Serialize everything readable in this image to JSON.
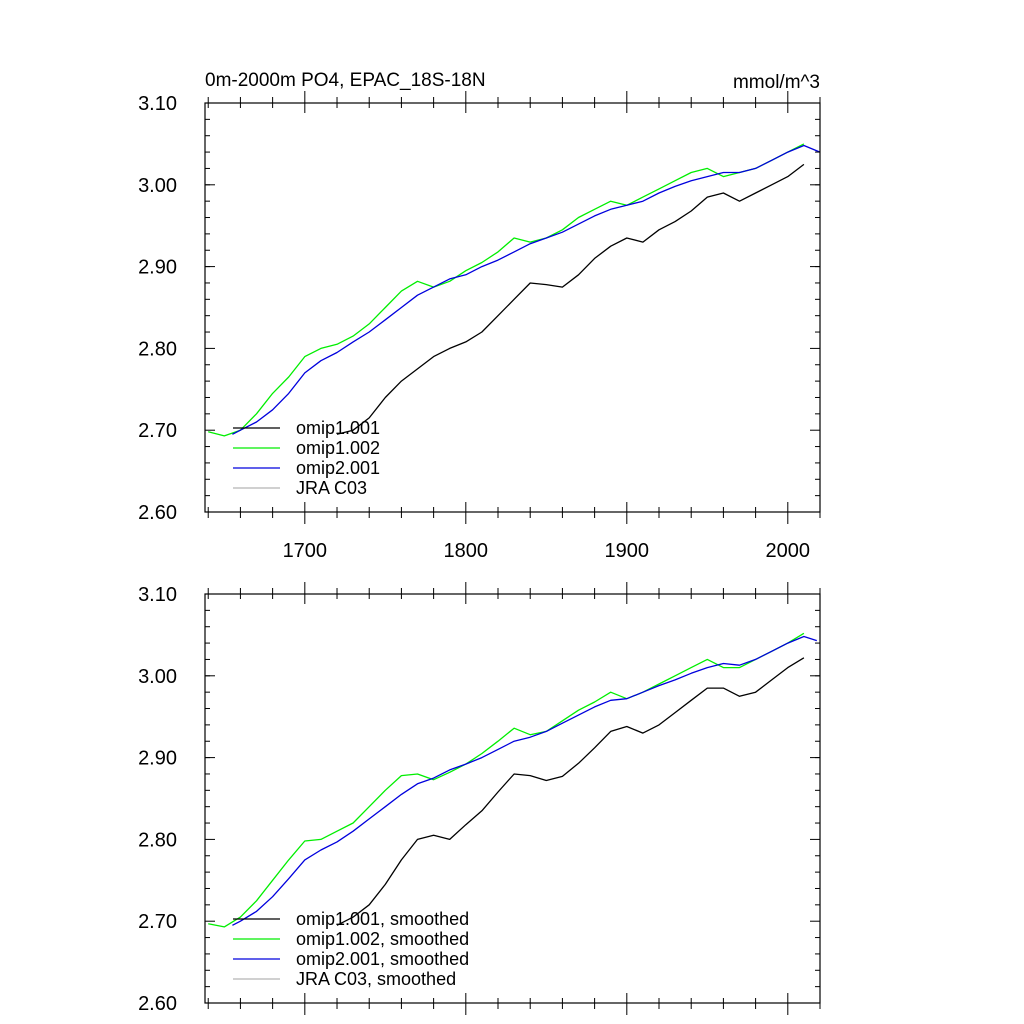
{
  "colors": {
    "omip1_001": "#000000",
    "omip1_002": "#00ee00",
    "omip2_001": "#0000dd",
    "jra_c03": "#b4b4b4"
  },
  "figure": {
    "title_left": "0m-2000m PO4, EPAC_18S-18N",
    "title_right": "mmol/m^3"
  },
  "chart_data": [
    {
      "type": "line",
      "panel": "raw",
      "xlim": [
        1638,
        2020
      ],
      "ylim": [
        2.6,
        3.1
      ],
      "xticks": [
        1700,
        1800,
        1900,
        2000
      ],
      "xtick_labels": [
        "1700",
        "1800",
        "1900",
        "2000"
      ],
      "yticks": [
        2.6,
        2.7,
        2.8,
        2.9,
        3.0,
        3.1
      ],
      "ytick_labels": [
        "2.60",
        "2.70",
        "2.80",
        "2.90",
        "3.00",
        "3.10"
      ],
      "legend_position": "bottom-left",
      "series": [
        {
          "key": "omip1_001",
          "name": "omip1.001",
          "color": "#000000",
          "x": [
            1720,
            1730,
            1740,
            1750,
            1760,
            1770,
            1780,
            1790,
            1800,
            1810,
            1820,
            1830,
            1840,
            1850,
            1860,
            1870,
            1880,
            1890,
            1900,
            1910,
            1920,
            1930,
            1940,
            1950,
            1960,
            1970,
            1980,
            1990,
            2000,
            2010
          ],
          "y": [
            2.695,
            2.7,
            2.715,
            2.74,
            2.76,
            2.775,
            2.79,
            2.8,
            2.808,
            2.82,
            2.84,
            2.86,
            2.88,
            2.878,
            2.875,
            2.89,
            2.91,
            2.925,
            2.935,
            2.93,
            2.945,
            2.955,
            2.968,
            2.985,
            2.99,
            2.98,
            2.99,
            3.0,
            3.01,
            3.025
          ]
        },
        {
          "key": "omip1_002",
          "name": "omip1.002",
          "color": "#00ee00",
          "x": [
            1640,
            1650,
            1660,
            1670,
            1680,
            1690,
            1700,
            1710,
            1720,
            1730,
            1740,
            1750,
            1760,
            1770,
            1780,
            1790,
            1800,
            1810,
            1820,
            1830,
            1840,
            1850,
            1860,
            1870,
            1880,
            1890,
            1900,
            1910,
            1920,
            1930,
            1940,
            1950,
            1960,
            1970,
            1980,
            1990,
            2000,
            2010
          ],
          "y": [
            2.698,
            2.693,
            2.7,
            2.72,
            2.745,
            2.765,
            2.79,
            2.8,
            2.805,
            2.815,
            2.83,
            2.85,
            2.87,
            2.882,
            2.875,
            2.882,
            2.895,
            2.905,
            2.918,
            2.935,
            2.93,
            2.935,
            2.945,
            2.96,
            2.97,
            2.98,
            2.975,
            2.985,
            2.995,
            3.005,
            3.015,
            3.02,
            3.01,
            3.015,
            3.02,
            3.03,
            3.04,
            3.05
          ]
        },
        {
          "key": "omip2_001",
          "name": "omip2.001",
          "color": "#0000dd",
          "x": [
            1655,
            1660,
            1670,
            1680,
            1690,
            1700,
            1710,
            1720,
            1730,
            1740,
            1750,
            1760,
            1770,
            1780,
            1790,
            1800,
            1810,
            1820,
            1830,
            1840,
            1850,
            1860,
            1870,
            1880,
            1890,
            1900,
            1910,
            1920,
            1930,
            1940,
            1950,
            1960,
            1970,
            1980,
            1990,
            2000,
            2010,
            2020
          ],
          "y": [
            2.695,
            2.7,
            2.71,
            2.725,
            2.745,
            2.77,
            2.785,
            2.795,
            2.808,
            2.82,
            2.835,
            2.85,
            2.865,
            2.875,
            2.885,
            2.89,
            2.9,
            2.908,
            2.918,
            2.928,
            2.935,
            2.942,
            2.952,
            2.962,
            2.97,
            2.975,
            2.98,
            2.99,
            2.998,
            3.005,
            3.01,
            3.015,
            3.015,
            3.02,
            3.03,
            3.04,
            3.048,
            3.04
          ]
        },
        {
          "key": "jra_c03",
          "name": "JRA C03",
          "color": "#b4b4b4",
          "x": [],
          "y": []
        }
      ]
    },
    {
      "type": "line",
      "panel": "smoothed",
      "xlim": [
        1638,
        2020
      ],
      "ylim": [
        2.6,
        3.1
      ],
      "xticks": [
        1700,
        1800,
        1900,
        2000
      ],
      "yticks": [
        2.6,
        2.7,
        2.8,
        2.9,
        3.0,
        3.1
      ],
      "ytick_labels": [
        "2.60",
        "2.70",
        "2.80",
        "2.90",
        "3.00",
        "3.10"
      ],
      "legend_position": "bottom-left",
      "series": [
        {
          "key": "omip1_001",
          "name": "omip1.001, smoothed",
          "color": "#000000",
          "x": [
            1720,
            1730,
            1740,
            1750,
            1760,
            1770,
            1780,
            1790,
            1800,
            1810,
            1820,
            1830,
            1840,
            1850,
            1860,
            1870,
            1880,
            1890,
            1900,
            1910,
            1920,
            1930,
            1940,
            1950,
            1960,
            1970,
            1980,
            1990,
            2000,
            2010
          ],
          "y": [
            2.695,
            2.705,
            2.72,
            2.745,
            2.775,
            2.8,
            2.805,
            2.8,
            2.818,
            2.835,
            2.858,
            2.88,
            2.878,
            2.872,
            2.877,
            2.893,
            2.912,
            2.932,
            2.938,
            2.93,
            2.94,
            2.955,
            2.97,
            2.985,
            2.985,
            2.975,
            2.98,
            2.995,
            3.01,
            3.022
          ]
        },
        {
          "key": "omip1_002",
          "name": "omip1.002, smoothed",
          "color": "#00ee00",
          "x": [
            1640,
            1650,
            1660,
            1670,
            1680,
            1690,
            1700,
            1710,
            1720,
            1730,
            1740,
            1750,
            1760,
            1770,
            1780,
            1790,
            1800,
            1810,
            1820,
            1830,
            1840,
            1850,
            1860,
            1870,
            1880,
            1890,
            1900,
            1910,
            1920,
            1930,
            1940,
            1950,
            1960,
            1970,
            1980,
            1990,
            2000,
            2010
          ],
          "y": [
            2.697,
            2.693,
            2.705,
            2.725,
            2.75,
            2.775,
            2.798,
            2.8,
            2.81,
            2.82,
            2.84,
            2.86,
            2.878,
            2.88,
            2.873,
            2.882,
            2.892,
            2.905,
            2.92,
            2.936,
            2.928,
            2.932,
            2.945,
            2.958,
            2.968,
            2.98,
            2.972,
            2.98,
            2.99,
            3.0,
            3.01,
            3.02,
            3.01,
            3.01,
            3.02,
            3.03,
            3.04,
            3.052
          ]
        },
        {
          "key": "omip2_001",
          "name": "omip2.001, smoothed",
          "color": "#0000dd",
          "x": [
            1655,
            1660,
            1670,
            1680,
            1690,
            1700,
            1710,
            1720,
            1730,
            1740,
            1750,
            1760,
            1770,
            1780,
            1790,
            1800,
            1810,
            1820,
            1830,
            1840,
            1850,
            1860,
            1870,
            1880,
            1890,
            1900,
            1910,
            1920,
            1930,
            1940,
            1950,
            1960,
            1970,
            1980,
            1990,
            2000,
            2010,
            2018
          ],
          "y": [
            2.695,
            2.7,
            2.712,
            2.73,
            2.752,
            2.775,
            2.787,
            2.797,
            2.81,
            2.825,
            2.84,
            2.855,
            2.868,
            2.875,
            2.885,
            2.892,
            2.9,
            2.91,
            2.92,
            2.925,
            2.932,
            2.942,
            2.952,
            2.962,
            2.97,
            2.972,
            2.98,
            2.988,
            2.995,
            3.003,
            3.01,
            3.015,
            3.013,
            3.02,
            3.03,
            3.04,
            3.048,
            3.043
          ]
        },
        {
          "key": "jra_c03",
          "name": "JRA C03, smoothed",
          "color": "#b4b4b4",
          "x": [],
          "y": []
        }
      ]
    }
  ]
}
